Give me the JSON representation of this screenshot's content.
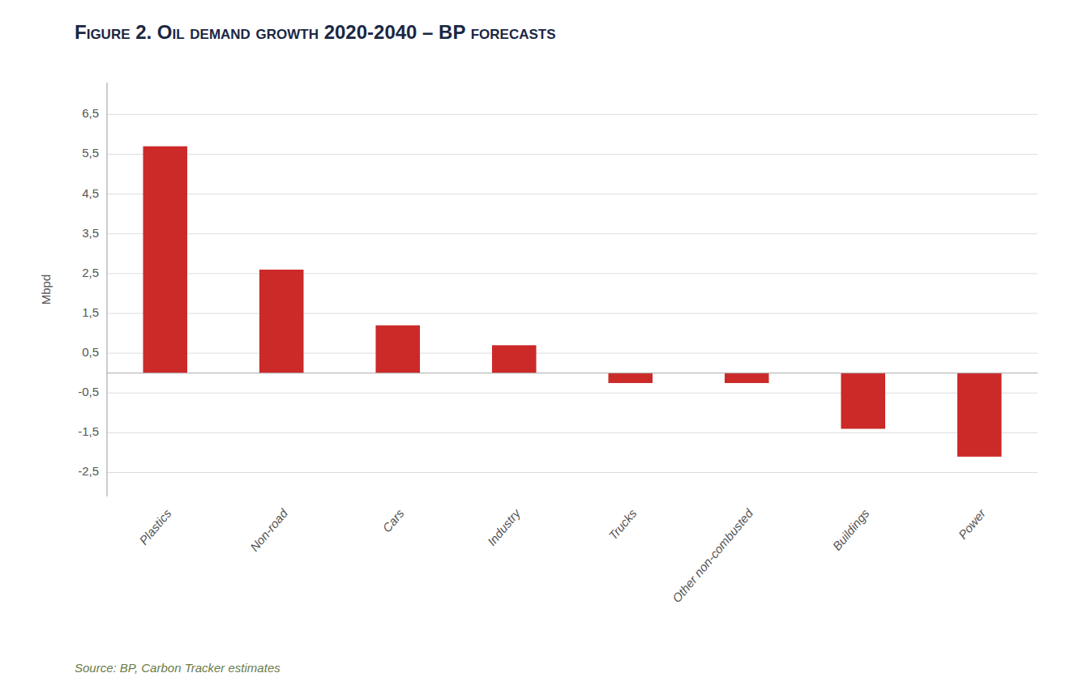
{
  "chart_data": {
    "type": "bar",
    "title": "Figure 2. Oil demand growth 2020-2040 – BP forecasts",
    "ylabel": "Mbpd",
    "annotations": [
      "Source: BP, Carbon Tracker estimates"
    ],
    "categories": [
      "Plastics",
      "Non-road",
      "Cars",
      "Industry",
      "Trucks",
      "Other non-combusted",
      "Buildings",
      "Power"
    ],
    "values": [
      5.7,
      2.6,
      1.2,
      0.7,
      -0.25,
      -0.25,
      -1.4,
      -2.1
    ],
    "color": "#cc2929",
    "ylim": [
      -3.1,
      7.3
    ],
    "yticks": [
      {
        "value": 6.5,
        "label": "6,5"
      },
      {
        "value": 5.5,
        "label": "5,5"
      },
      {
        "value": 4.5,
        "label": "4,5"
      },
      {
        "value": 3.5,
        "label": "3,5"
      },
      {
        "value": 2.5,
        "label": "2,5"
      },
      {
        "value": 1.5,
        "label": "1,5"
      },
      {
        "value": 0.5,
        "label": "0,5"
      },
      {
        "value": -0.5,
        "label": "-0,5"
      },
      {
        "value": -1.5,
        "label": "-1,5"
      },
      {
        "value": -2.5,
        "label": "-2,5"
      }
    ],
    "grid": true
  }
}
